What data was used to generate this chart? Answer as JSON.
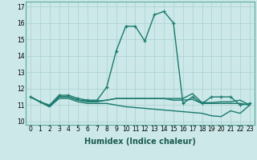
{
  "xlabel": "Humidex (Indice chaleur)",
  "x_values": [
    0,
    1,
    2,
    3,
    4,
    5,
    6,
    7,
    8,
    9,
    10,
    11,
    12,
    13,
    14,
    15,
    16,
    17,
    18,
    19,
    20,
    21,
    22,
    23
  ],
  "series": [
    [
      11.5,
      11.2,
      11.0,
      11.6,
      11.6,
      11.4,
      11.3,
      11.3,
      12.1,
      14.3,
      15.8,
      15.8,
      14.9,
      16.5,
      16.7,
      16.0,
      11.1,
      11.5,
      11.1,
      11.5,
      11.5,
      11.5,
      11.0,
      11.1
    ],
    [
      11.5,
      11.2,
      10.9,
      11.5,
      11.5,
      11.3,
      11.25,
      11.25,
      11.3,
      11.4,
      11.4,
      11.4,
      11.4,
      11.4,
      11.4,
      11.4,
      11.4,
      11.7,
      11.15,
      11.15,
      11.2,
      11.2,
      11.3,
      11.0
    ],
    [
      11.5,
      11.2,
      10.9,
      11.4,
      11.4,
      11.2,
      11.1,
      11.1,
      11.1,
      11.0,
      10.9,
      10.85,
      10.8,
      10.75,
      10.7,
      10.65,
      10.6,
      10.55,
      10.5,
      10.35,
      10.3,
      10.65,
      10.5,
      11.0
    ],
    [
      11.5,
      11.2,
      10.9,
      11.5,
      11.5,
      11.3,
      11.2,
      11.2,
      11.3,
      11.4,
      11.4,
      11.4,
      11.4,
      11.4,
      11.4,
      11.3,
      11.3,
      11.35,
      11.1,
      11.1,
      11.1,
      11.1,
      11.1,
      11.0
    ]
  ],
  "line_color": "#1a7a6e",
  "bg_color": "#cce8e8",
  "grid_color": "#aad0d0",
  "ylim": [
    9.8,
    17.3
  ],
  "yticks": [
    10,
    11,
    12,
    13,
    14,
    15,
    16,
    17
  ],
  "xlim": [
    -0.5,
    23.5
  ],
  "xlabel_fontsize": 7,
  "tick_fontsize": 5.5
}
